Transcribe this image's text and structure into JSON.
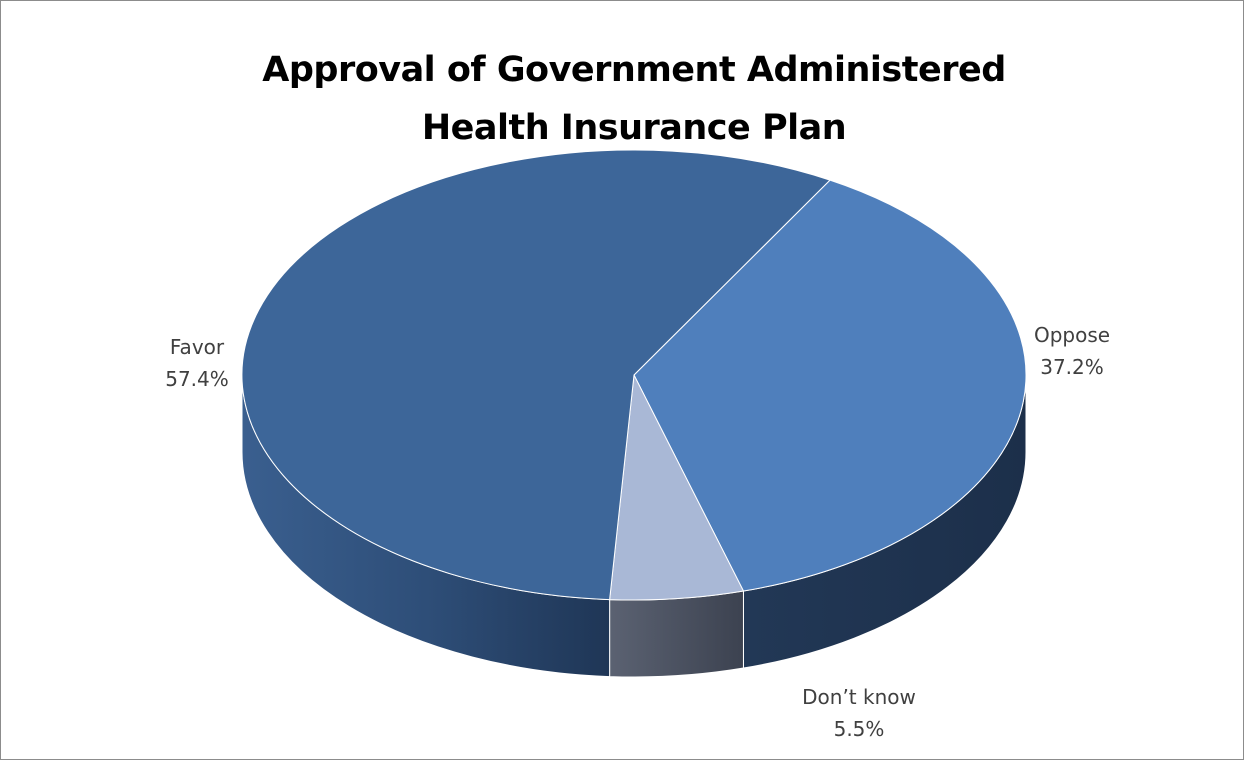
{
  "chart_data": {
    "type": "pie",
    "title_lines": [
      "Approval of Government Administered",
      "Health Insurance Plan"
    ],
    "slices": [
      {
        "label": "Favor",
        "value": 57.4,
        "value_text": "57.4%",
        "color": "#3d6699",
        "side_color": "#2b4a72"
      },
      {
        "label": "Oppose",
        "value": 37.2,
        "value_text": "37.2%",
        "color": "#4f7fbc",
        "side_color": "#223856"
      },
      {
        "label": "Don’t know",
        "value": 5.5,
        "value_text": "5.5%",
        "color": "#a9b8d6",
        "side_color": "#4a5160"
      }
    ],
    "style": "3d"
  }
}
